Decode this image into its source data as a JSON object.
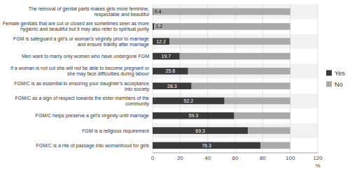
{
  "chart_data": {
    "type": "bar",
    "orientation": "horizontal",
    "stacked": true,
    "categories": [
      "FGM/C is a rite of passage into womanhood for girls",
      "FGM is a religious requirement",
      "FGM/C helps preserve a girl's virginity until marriage",
      "FGM/C as a sign of respect towards the elder members of the\ncommunity",
      "FGM/C is as essential to ensuring your daughter's acceptance\ninto society",
      "If a woman is not cut she will not be able to become pregnant or\nshe may face difficulties during labour",
      "Men want to marry only women who have undergone FGM",
      "FGM is safeguard a girl's or woman's virginity prior to marriage\nand ensure fidelity after marriage",
      "Female genitals that are cut or closed are sometimes seen as more\nhygienic and beautiful but it may also refer to spiritual purity",
      "The removal of genital parts makes girls more feminine,\nrespectable and beautiful"
    ],
    "series": [
      {
        "name": "Yes",
        "color": "#3a3a3a",
        "data_labels": true,
        "values": [
          78.3,
          69.3,
          59.3,
          52.2,
          28.3,
          25.8,
          19.7,
          12.2,
          1.2,
          0.4
        ]
      },
      {
        "name": "No",
        "color": "#aaaaaa",
        "data_labels": false,
        "values": [
          21.7,
          30.7,
          40.7,
          47.8,
          71.7,
          74.2,
          80.3,
          87.8,
          98.8,
          99.6
        ]
      }
    ],
    "xlim": [
      0,
      120
    ],
    "xticks": [
      0,
      20,
      40,
      60,
      80,
      100,
      120
    ],
    "xlabel": "%",
    "grid": true,
    "legend": "right"
  }
}
